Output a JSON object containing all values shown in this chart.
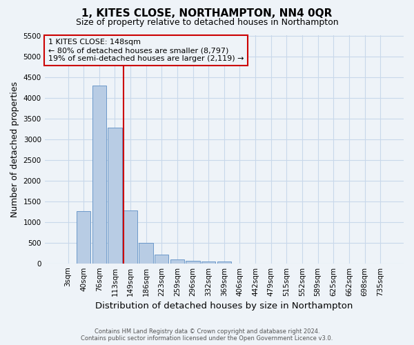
{
  "title": "1, KITES CLOSE, NORTHAMPTON, NN4 0QR",
  "subtitle": "Size of property relative to detached houses in Northampton",
  "xlabel": "Distribution of detached houses by size in Northampton",
  "ylabel": "Number of detached properties",
  "footnote1": "Contains HM Land Registry data © Crown copyright and database right 2024.",
  "footnote2": "Contains public sector information licensed under the Open Government Licence v3.0.",
  "bar_labels": [
    "3sqm",
    "40sqm",
    "76sqm",
    "113sqm",
    "149sqm",
    "186sqm",
    "223sqm",
    "259sqm",
    "296sqm",
    "332sqm",
    "369sqm",
    "406sqm",
    "442sqm",
    "479sqm",
    "515sqm",
    "552sqm",
    "589sqm",
    "625sqm",
    "662sqm",
    "698sqm",
    "735sqm"
  ],
  "bar_values": [
    0,
    1260,
    4300,
    3280,
    1270,
    490,
    210,
    90,
    60,
    50,
    40,
    0,
    0,
    0,
    0,
    0,
    0,
    0,
    0,
    0,
    0
  ],
  "bar_color": "#b8cce4",
  "bar_edge_color": "#5b8dc4",
  "grid_color": "#c8d8ea",
  "background_color": "#eef3f8",
  "vline_x": 3.575,
  "vline_color": "#cc0000",
  "annotation_text": "1 KITES CLOSE: 148sqm\n← 80% of detached houses are smaller (8,797)\n19% of semi-detached houses are larger (2,119) →",
  "annotation_box_color": "#cc0000",
  "ylim": [
    0,
    5500
  ],
  "yticks": [
    0,
    500,
    1000,
    1500,
    2000,
    2500,
    3000,
    3500,
    4000,
    4500,
    5000,
    5500
  ],
  "title_fontsize": 11,
  "subtitle_fontsize": 9,
  "axis_label_fontsize": 9,
  "tick_fontsize": 7.5,
  "annotation_fontsize": 8,
  "footnote_fontsize": 6
}
